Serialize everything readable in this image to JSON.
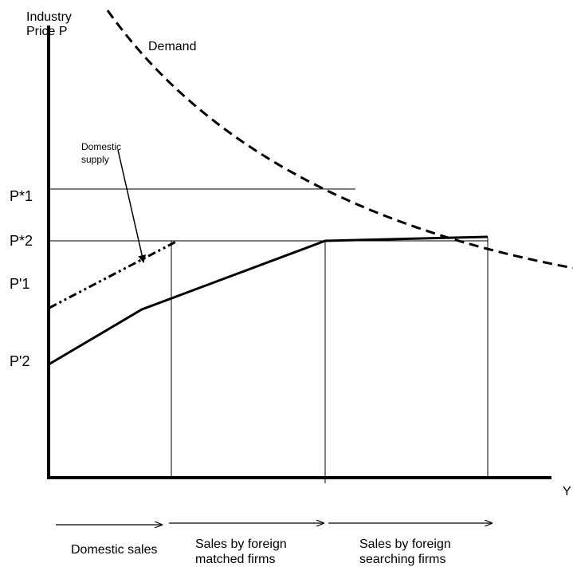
{
  "axes": {
    "y_label_line1": "Industry",
    "y_label_line2": "Price P",
    "x_label": "Y"
  },
  "curves": {
    "demand_label": "Demand",
    "domestic_supply_line1": "Domestic",
    "domestic_supply_line2": "supply"
  },
  "price_levels": {
    "p_star_1": "P*1",
    "p_star_2": "P*2",
    "p_prime_1": "P'1",
    "p_prime_2": "P'2"
  },
  "regions": {
    "domestic_sales": "Domestic sales",
    "foreign_matched_line1": "Sales by foreign",
    "foreign_matched_line2": "matched firms",
    "foreign_searching_line1": "Sales by foreign",
    "foreign_searching_line2": "searching firms"
  },
  "colors": {
    "ink": "#000000",
    "background": "#ffffff"
  }
}
